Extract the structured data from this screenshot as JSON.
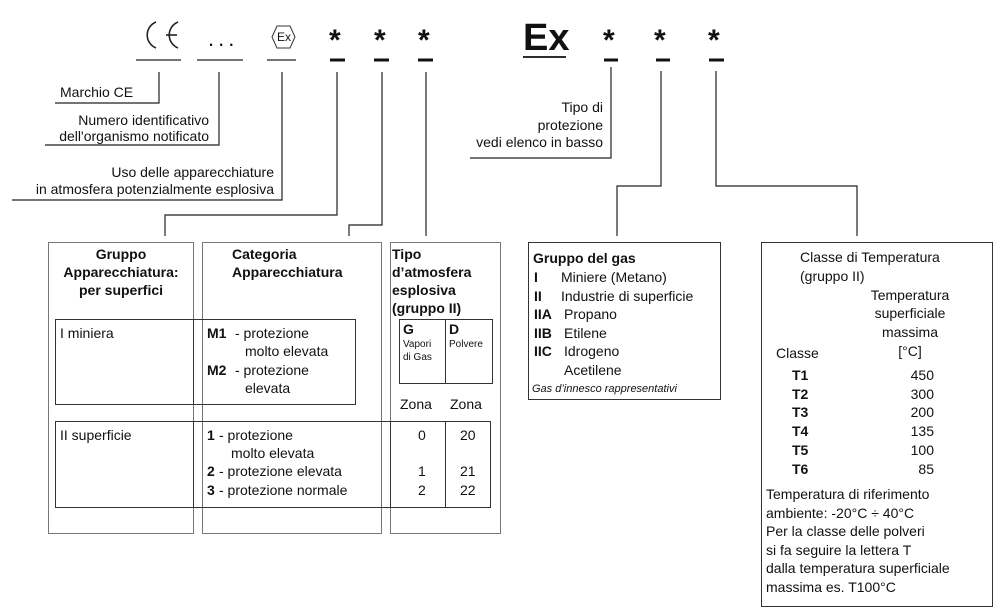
{
  "marking": {
    "ce_logo": "CE",
    "notified_body_placeholder": "...",
    "ex_hexagon": "Ex",
    "ex_symbol": "Ex",
    "placeholder": "*"
  },
  "labels": {
    "ce": "Marchio CE",
    "notified_body": [
      "Numero identificativo",
      "dell'organismo notificato"
    ],
    "atex_use": [
      "Uso delle apparecchiature",
      "in atmosfera potenzialmente esplosiva"
    ],
    "protection_type": [
      "Tipo di",
      "protezione",
      "vedi elenco in basso"
    ]
  },
  "equipment_table": {
    "group_header": [
      "Gruppo",
      "Apparecchiatura:",
      "per superfici"
    ],
    "category_header": [
      "Categoria",
      "Apparecchiatura"
    ],
    "atmosphere_header": [
      "Tipo",
      "d’atmosfera",
      "esplosiva",
      "(gruppo II)"
    ],
    "gas": {
      "code": "G",
      "label": [
        "Vapori",
        "di Gas"
      ]
    },
    "dust": {
      "code": "D",
      "label": "Polvere"
    },
    "zone_label": "Zona",
    "group_I": {
      "label": "I miniera",
      "categories": [
        {
          "code": "M1",
          "text": [
            "- protezione",
            "molto elevata"
          ]
        },
        {
          "code": "M2",
          "text": [
            "- protezione",
            "elevata"
          ]
        }
      ]
    },
    "group_II": {
      "label": "II superficie",
      "categories": [
        {
          "code": "1",
          "text": [
            "- protezione",
            "molto elevata"
          ],
          "gas_zone": "0",
          "dust_zone": "20"
        },
        {
          "code": "2",
          "text": [
            "- protezione elevata"
          ],
          "gas_zone": "1",
          "dust_zone": "21"
        },
        {
          "code": "3",
          "text": [
            "- protezione normale"
          ],
          "gas_zone": "2",
          "dust_zone": "22"
        }
      ]
    }
  },
  "gas_group": {
    "title": "Gruppo del gas",
    "rows": [
      {
        "code": "I",
        "text": "Miniere (Metano)"
      },
      {
        "code": "II",
        "text": "Industrie di superficie"
      },
      {
        "code": "IIA",
        "text": "Propano"
      },
      {
        "code": "IIB",
        "text": "Etilene"
      },
      {
        "code": "IIC",
        "text": "Idrogeno"
      },
      {
        "code": "",
        "text": "Acetilene"
      }
    ],
    "footnote": "Gas d’innesco rappresentativi"
  },
  "temperature_class": {
    "title": [
      "Classe di Temperatura",
      "(gruppo II)"
    ],
    "temp_header": [
      "Temperatura",
      "superficiale",
      "massima",
      "[°C]"
    ],
    "class_header": "Classe",
    "rows": [
      {
        "cls": "T1",
        "temp": "450"
      },
      {
        "cls": "T2",
        "temp": "300"
      },
      {
        "cls": "T3",
        "temp": "200"
      },
      {
        "cls": "T4",
        "temp": "135"
      },
      {
        "cls": "T5",
        "temp": "100"
      },
      {
        "cls": "T6",
        "temp": "85"
      }
    ],
    "notes": [
      "Temperatura di riferimento",
      "ambiente:  -20°C ÷ 40°C",
      "Per la classe delle polveri",
      "si fa seguire la lettera T",
      "dalla temperatura superficiale",
      "massima  es. T100°C"
    ]
  }
}
